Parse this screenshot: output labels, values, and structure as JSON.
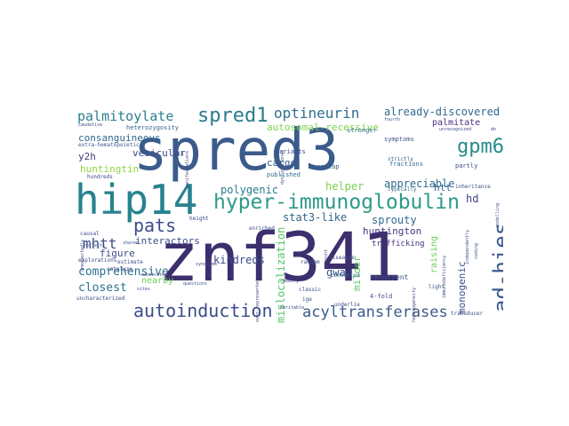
{
  "cloud": {
    "words": [
      {
        "text": "znf341",
        "color": "#3d2f6e"
      },
      {
        "text": "spred3",
        "color": "#3b5b8c"
      },
      {
        "text": "hip14",
        "color": "#26828e"
      },
      {
        "text": "hyper-immunoglobulin",
        "color": "#2e9a8a"
      },
      {
        "text": "spred1",
        "color": "#2c7b8e"
      },
      {
        "text": "ad-hies",
        "color": "#3a5a8d"
      },
      {
        "text": "gpm6a",
        "color": "#2a8a8a"
      },
      {
        "text": "autoinduction",
        "color": "#3b4c89"
      },
      {
        "text": "acyltransferases",
        "color": "#3b5a8a"
      },
      {
        "text": "pats",
        "color": "#3b4d8a"
      },
      {
        "text": "palmitoylate",
        "color": "#2c7f8e"
      },
      {
        "text": "optineurin",
        "color": "#2e6f8e"
      },
      {
        "text": "mislocalization",
        "color": "#54c568"
      },
      {
        "text": "polygenic",
        "color": "#2c7b8e"
      },
      {
        "text": "comprehensive",
        "color": "#2d718e"
      },
      {
        "text": "closest",
        "color": "#2c728e"
      },
      {
        "text": "mhtt",
        "color": "#3b4f8c"
      },
      {
        "text": "kindreds",
        "color": "#3d4a89"
      },
      {
        "text": "stat3-like",
        "color": "#30688e"
      },
      {
        "text": "sprouty",
        "color": "#31688e"
      },
      {
        "text": "huntington",
        "color": "#453781"
      },
      {
        "text": "helper",
        "color": "#7ad151"
      },
      {
        "text": "hd",
        "color": "#414487"
      },
      {
        "text": "appreciable",
        "color": "#2f6b8e"
      },
      {
        "text": "already-discovered",
        "color": "#31688e"
      },
      {
        "text": "palmitate",
        "color": "#472f7d"
      },
      {
        "text": "autosomal-recessive",
        "color": "#7fd34e"
      },
      {
        "text": "consanguineous",
        "color": "#31688e"
      },
      {
        "text": "vesicular",
        "color": "#3f4889"
      },
      {
        "text": "y2h",
        "color": "#453882"
      },
      {
        "text": "huntingtin",
        "color": "#90d743"
      },
      {
        "text": "cargo",
        "color": "#38588c"
      },
      {
        "text": "interactors",
        "color": "#3d4e8a"
      },
      {
        "text": "figure",
        "color": "#3e4c8a"
      },
      {
        "text": "nearby",
        "color": "#6ece58"
      },
      {
        "text": "raising",
        "color": "#6ccd5a"
      },
      {
        "text": "gwa",
        "color": "#3b528b"
      },
      {
        "text": "milder",
        "color": "#5ac864"
      },
      {
        "text": "monogenic",
        "color": "#3b518b"
      },
      {
        "text": "htt",
        "color": "#35608d"
      },
      {
        "text": "trafficking",
        "color": "#46327e"
      },
      {
        "text": "recurrent",
        "color": "#3c4f8a"
      },
      {
        "text": "overlap",
        "color": "#355f8d"
      },
      {
        "text": "symptoms",
        "color": "#3b528b"
      },
      {
        "text": "fractions",
        "color": "#31678e"
      },
      {
        "text": "variants",
        "color": "#3e4989"
      },
      {
        "text": "published",
        "color": "#2e6e8e"
      },
      {
        "text": "strictly",
        "color": "#31668e"
      },
      {
        "text": "typically",
        "color": "#2e6f8e"
      },
      {
        "text": "partly",
        "color": "#3e4a89"
      },
      {
        "text": "fourth",
        "color": "#3b528b"
      },
      {
        "text": "stronger",
        "color": "#2f6c8e"
      },
      {
        "text": "heterozygosity",
        "color": "#31688e"
      },
      {
        "text": "caudative",
        "color": "#3d4d8a"
      },
      {
        "text": "extra-hematopoietic",
        "color": "#3a548c"
      },
      {
        "text": "hundreds",
        "color": "#3f4788"
      },
      {
        "text": "causal",
        "color": "#3e4a89"
      },
      {
        "text": "reflects",
        "color": "#3b528b"
      },
      {
        "text": "explorations",
        "color": "#3e4c8a"
      },
      {
        "text": "uncharacterized",
        "color": "#3e4a89"
      },
      {
        "text": "catalyze",
        "color": "#3f4788"
      },
      {
        "text": "estimate",
        "color": "#3b528b"
      },
      {
        "text": "height",
        "color": "#3e4a89"
      },
      {
        "text": "enriched",
        "color": "#3d4e8a"
      },
      {
        "text": "shared",
        "color": "#3e4c8a"
      },
      {
        "text": "questions",
        "color": "#3b528b"
      },
      {
        "text": "random",
        "color": "#3e4a89"
      },
      {
        "text": "account",
        "color": "#3f4788"
      },
      {
        "text": "classic",
        "color": "#3e4c8a"
      },
      {
        "text": "ige",
        "color": "#3b528b"
      },
      {
        "text": "connected",
        "color": "#31688e"
      },
      {
        "text": "diseases",
        "color": "#3e4a89"
      },
      {
        "text": "underlie",
        "color": "#3d4e8a"
      },
      {
        "text": "4-fold",
        "color": "#3e4c8a"
      },
      {
        "text": "light",
        "color": "#3b528b"
      },
      {
        "text": "transducer",
        "color": "#3e4a89"
      },
      {
        "text": "heritable",
        "color": "#3e4c8a"
      },
      {
        "text": "unrecognized",
        "color": "#3e4a89"
      },
      {
        "text": "inheritance",
        "color": "#3b528b"
      },
      {
        "text": "immunodeficiency",
        "color": "#3e4c8a"
      },
      {
        "text": "dn",
        "color": "#3e4a89"
      },
      {
        "text": "syndrome",
        "color": "#3e4c8a"
      },
      {
        "text": "ii",
        "color": "#3b528b"
      },
      {
        "text": "dysfunctional",
        "color": "#3e4a89"
      },
      {
        "text": "manifestations",
        "color": "#3e4c8a"
      },
      {
        "text": "substrates",
        "color": "#3e4a89"
      },
      {
        "text": "sites",
        "color": "#3b528b"
      },
      {
        "text": "memory",
        "color": "#3e4a89"
      },
      {
        "text": "over-represented",
        "color": "#3e4c8a"
      },
      {
        "text": "heterogeneity",
        "color": "#3e4a89"
      },
      {
        "text": "unexpectedly",
        "color": "#3e4a89"
      },
      {
        "text": "independently",
        "color": "#3e4c8a"
      },
      {
        "text": "modelling",
        "color": "#3b528b"
      },
      {
        "text": "coding",
        "color": "#3e4a89"
      }
    ]
  }
}
